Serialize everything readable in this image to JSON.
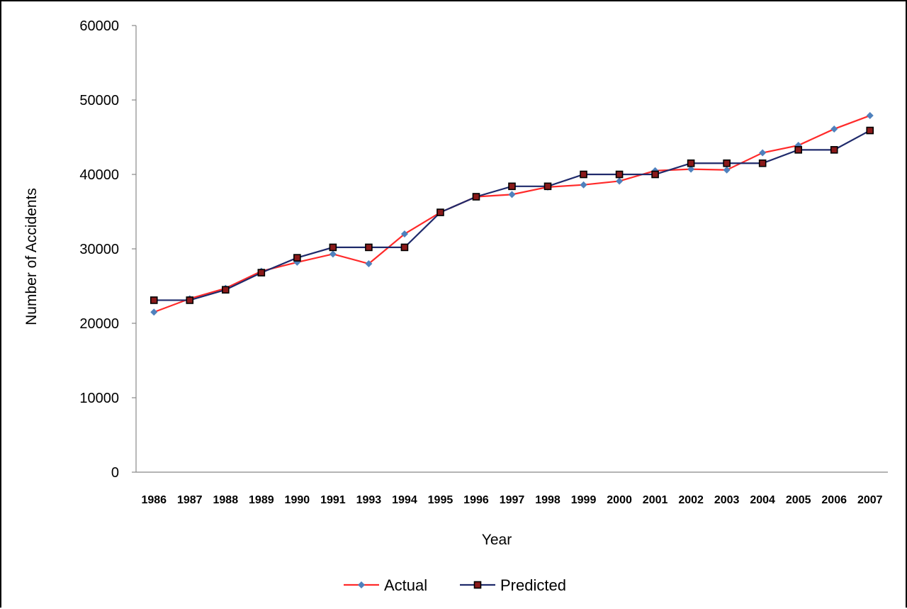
{
  "chart_data": {
    "type": "line",
    "title": "",
    "xlabel": "Year",
    "ylabel": "Number of Accidents",
    "ylim": [
      0,
      60000
    ],
    "yticks": [
      0,
      10000,
      20000,
      30000,
      40000,
      50000,
      60000
    ],
    "grid": false,
    "legend_position": "bottom",
    "categories": [
      "1986",
      "1987",
      "1988",
      "1989",
      "1990",
      "1991",
      "1993",
      "1994",
      "1995",
      "1996",
      "1997",
      "1998",
      "1999",
      "2000",
      "2001",
      "2002",
      "2003",
      "2004",
      "2005",
      "2006",
      "2007"
    ],
    "series": [
      {
        "name": "Actual",
        "color": "#ff2a2a",
        "marker": "diamond",
        "marker_color": "#4f81bd",
        "values": [
          21500,
          23300,
          24700,
          27000,
          28200,
          29300,
          28000,
          32000,
          34900,
          37000,
          37300,
          38300,
          38600,
          39100,
          40500,
          40700,
          40600,
          42900,
          43900,
          46100,
          47900
        ]
      },
      {
        "name": "Predicted",
        "color": "#1f2a6b",
        "marker": "square",
        "marker_color": "#8b1a1a",
        "values": [
          23100,
          23100,
          24500,
          26800,
          28800,
          30200,
          30200,
          30200,
          34900,
          37000,
          38400,
          38400,
          40000,
          40000,
          40000,
          41500,
          41500,
          41500,
          43300,
          43300,
          45900
        ]
      }
    ]
  }
}
